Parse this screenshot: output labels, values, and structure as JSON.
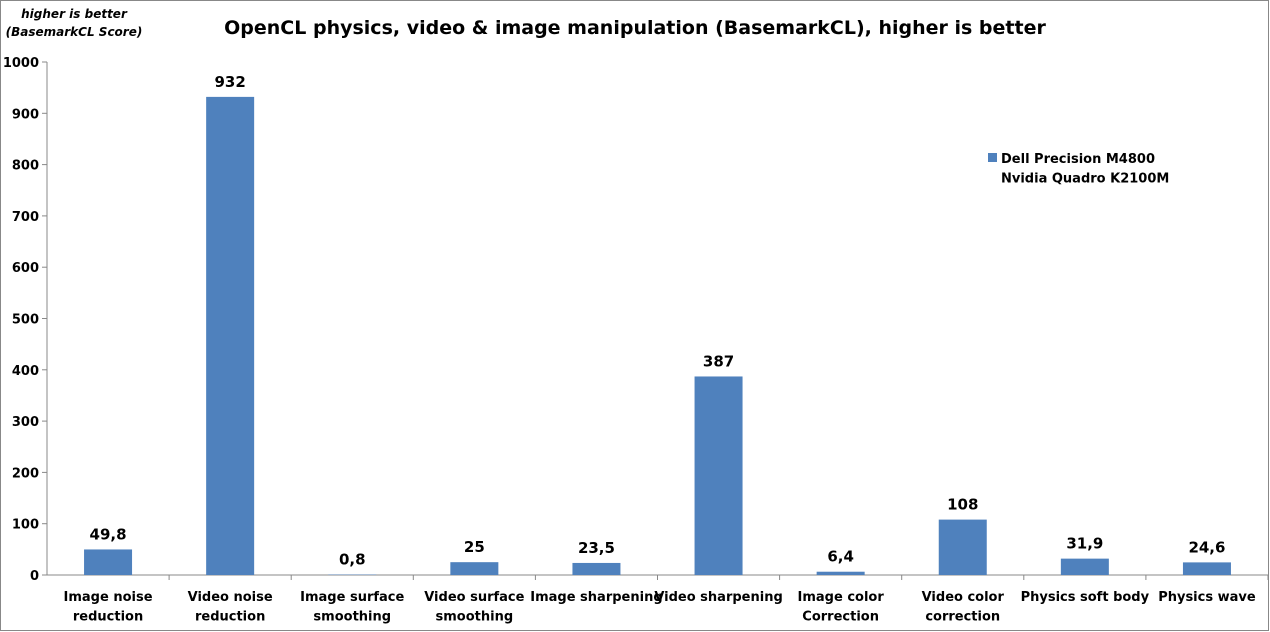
{
  "chart_data": {
    "type": "bar",
    "title": "OpenCL physics, video & image manipulation (BasemarkCL), higher is better",
    "y_label": "higher is better\n(BasemarkCL Score)",
    "categories": [
      "Image noise\nreduction",
      "Video noise\nreduction",
      "Image surface\nsmoothing",
      "Video surface\nsmoothing",
      "Image sharpening",
      "Video sharpening",
      "Image color\nCorrection",
      "Video color\ncorrection",
      "Physics soft body",
      "Physics wave"
    ],
    "series": [
      {
        "name": "Dell Precision M4800\nNvidia Quadro K2100M",
        "color": "#4f81bd",
        "values": [
          49.8,
          932,
          0.8,
          25,
          23.5,
          387,
          6.4,
          108,
          31.9,
          24.6
        ],
        "value_labels": [
          "49,8",
          "932",
          "0,8",
          "25",
          "23,5",
          "387",
          "6,4",
          "108",
          "31,9",
          "24,6"
        ]
      }
    ],
    "ylim": [
      0,
      1000
    ],
    "yticks": [
      0,
      100,
      200,
      300,
      400,
      500,
      600,
      700,
      800,
      900,
      1000
    ],
    "grid": false,
    "legend": "right"
  }
}
